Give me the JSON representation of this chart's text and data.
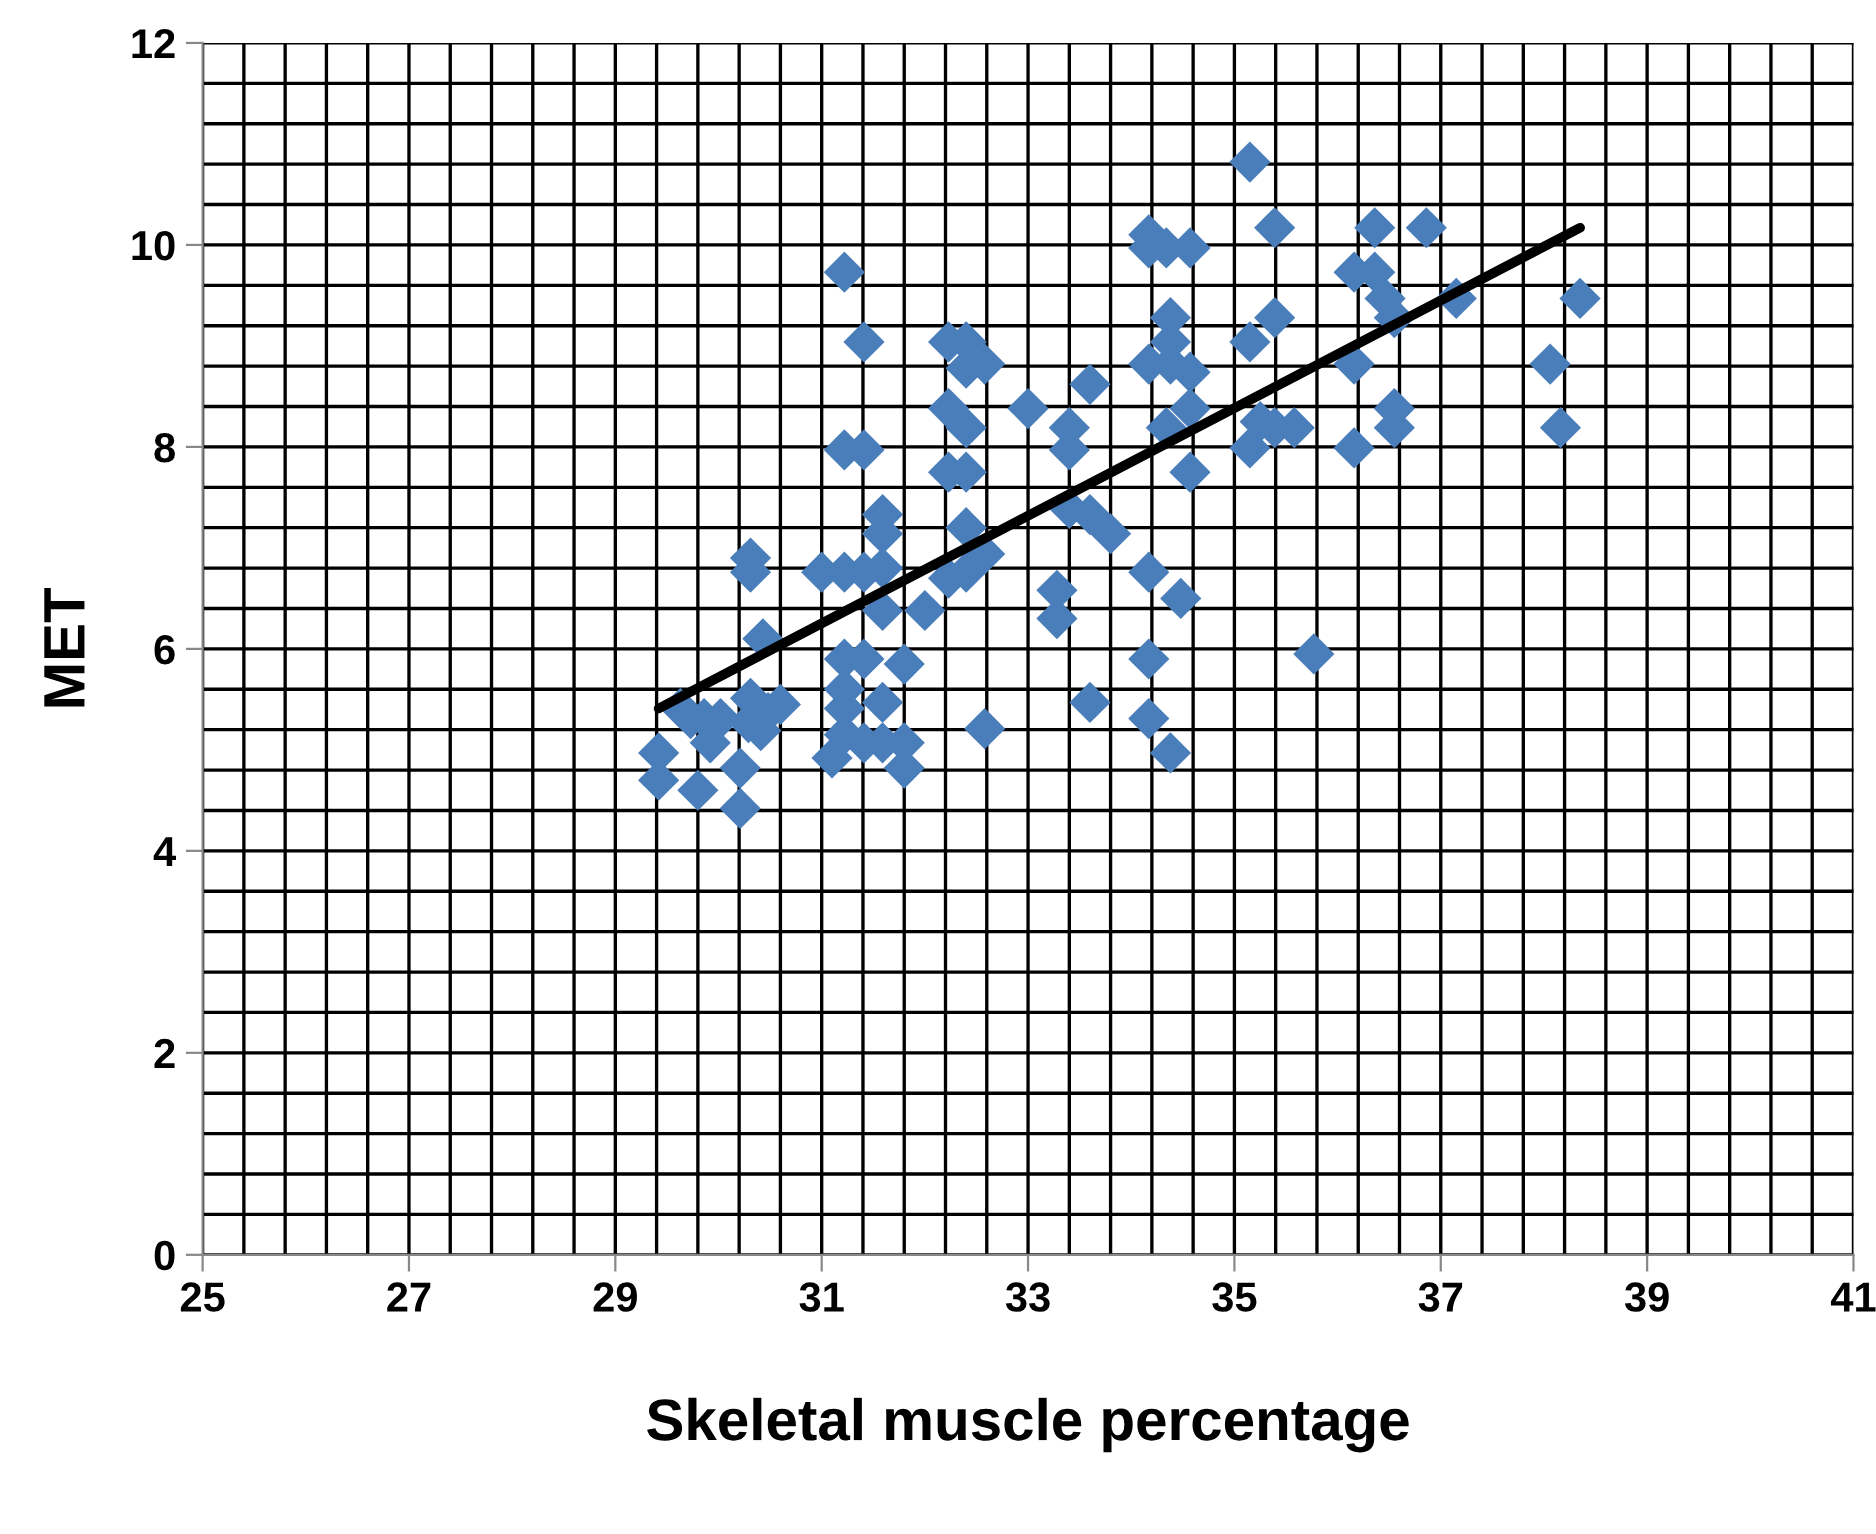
{
  "chart_data": {
    "type": "scatter",
    "xlabel": "Skeletal muscle percentage",
    "ylabel": "MET",
    "xlim": [
      25,
      41
    ],
    "ylim": [
      0,
      12
    ],
    "xticks": [
      25,
      27,
      29,
      31,
      33,
      35,
      37,
      39,
      41
    ],
    "yticks": [
      0,
      2,
      4,
      6,
      8,
      10,
      12
    ],
    "grid": true,
    "marker": "diamond",
    "series": [
      {
        "color": "#4a7ebb",
        "x": [
          29.42,
          29.42,
          29.63,
          29.73,
          29.86,
          29.8,
          29.92,
          30.02,
          30.21,
          30.21,
          30.29,
          30.31,
          30.31,
          30.31,
          30.43,
          30.41,
          30.48,
          30.6,
          31.0,
          31.1,
          31.22,
          31.22,
          31.22,
          31.22,
          31.22,
          31.22,
          31.22,
          31.41,
          31.41,
          31.41,
          31.41,
          31.41,
          31.59,
          31.59,
          31.59,
          31.59,
          31.59,
          31.59,
          31.8,
          31.8,
          31.8,
          32.0,
          32.23,
          32.23,
          32.23,
          32.4,
          32.4,
          32.4,
          32.4,
          32.4,
          32.4,
          32.23,
          32.58,
          32.58,
          32.58,
          33.0,
          33.28,
          33.28,
          33.4,
          33.4,
          33.4,
          33.6,
          33.6,
          33.6,
          33.8,
          34.17,
          34.17,
          34.17,
          34.17,
          34.17,
          34.17,
          34.34,
          34.34,
          34.38,
          34.38,
          34.38,
          34.38,
          34.57,
          34.57,
          34.57,
          34.57,
          34.48,
          35.15,
          35.15,
          35.15,
          35.25,
          35.39,
          35.39,
          35.39,
          35.58,
          35.77,
          36.16,
          36.16,
          36.16,
          36.36,
          36.36,
          36.46,
          36.55,
          36.55,
          36.55,
          36.86,
          37.15,
          38.06,
          38.16,
          38.35
        ],
        "values": [
          4.7,
          4.97,
          5.41,
          5.31,
          5.31,
          4.6,
          5.07,
          5.31,
          4.42,
          4.82,
          5.27,
          5.51,
          6.9,
          6.76,
          6.1,
          5.19,
          5.37,
          5.45,
          6.76,
          4.92,
          9.73,
          7.97,
          6.76,
          5.9,
          5.6,
          5.41,
          5.15,
          9.04,
          7.97,
          5.9,
          5.07,
          6.76,
          7.33,
          7.14,
          6.8,
          6.38,
          5.47,
          5.07,
          5.07,
          4.82,
          5.85,
          6.38,
          9.04,
          8.38,
          7.75,
          9.04,
          8.78,
          8.19,
          7.75,
          7.2,
          6.76,
          6.7,
          8.82,
          6.94,
          5.21,
          8.38,
          6.3,
          6.58,
          8.19,
          7.97,
          7.39,
          8.62,
          5.47,
          7.33,
          7.14,
          10.1,
          9.97,
          8.82,
          6.76,
          5.9,
          5.31,
          9.97,
          8.19,
          9.28,
          9.04,
          8.82,
          4.97,
          9.97,
          8.74,
          8.38,
          7.75,
          6.5,
          10.82,
          9.04,
          7.99,
          8.25,
          10.17,
          9.28,
          8.19,
          8.19,
          5.95,
          9.73,
          8.82,
          7.99,
          10.17,
          9.73,
          9.47,
          9.28,
          8.38,
          8.19,
          10.17,
          9.47,
          8.82,
          8.19,
          9.47
        ]
      },
      {
        "type": "line",
        "color": "#000000",
        "marker": "none",
        "line_style": "solid",
        "x": [
          29.42,
          38.35
        ],
        "values": [
          5.41,
          10.17
        ]
      }
    ]
  }
}
